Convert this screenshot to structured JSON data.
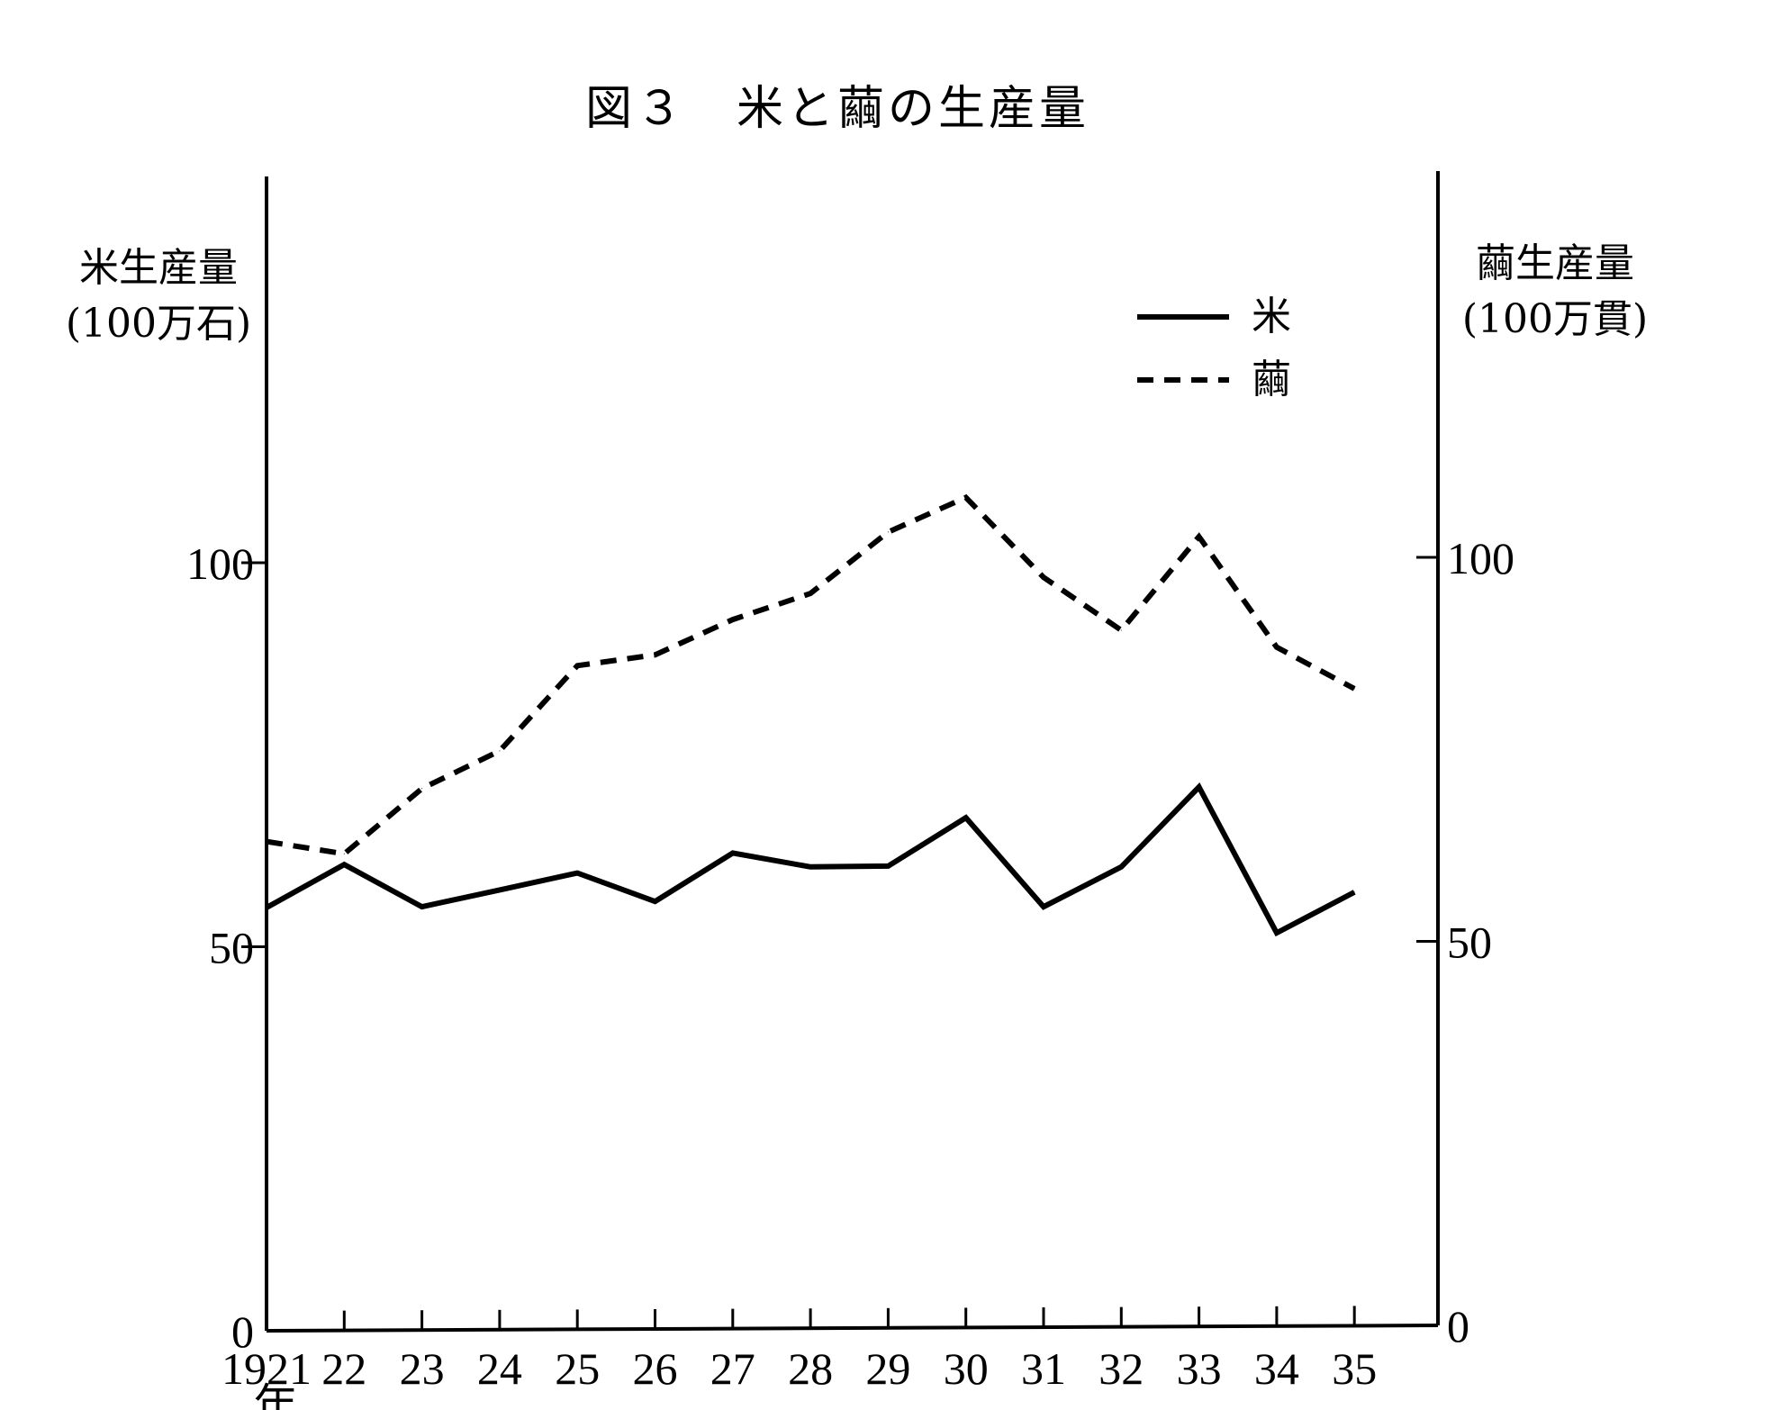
{
  "chart_data": {
    "type": "line",
    "title": "図３　米と繭の生産量",
    "x": [
      "1921",
      "22",
      "23",
      "24",
      "25",
      "26",
      "27",
      "28",
      "29",
      "30",
      "31",
      "32",
      "33",
      "34",
      "35"
    ],
    "xlabel_extra": "年",
    "left_axis": {
      "label_line1": "米生産量",
      "label_line2": "(100万石)",
      "ticks": [
        "0",
        "50",
        "100"
      ],
      "ylim": [
        0,
        140
      ]
    },
    "right_axis": {
      "label_line1": "繭生産量",
      "label_line2": "(100万貫)",
      "ticks": [
        "0",
        "50",
        "100"
      ],
      "ylim": [
        0,
        140
      ]
    },
    "series": [
      {
        "name": "米",
        "style": "solid",
        "axis": "left",
        "values": [
          55.1,
          60.7,
          55.2,
          57.4,
          59.6,
          55.9,
          62.2,
          60.4,
          60.5,
          66.8,
          55.2,
          60.4,
          70.8,
          51.8,
          57.1
        ]
      },
      {
        "name": "繭",
        "style": "dashed",
        "axis": "right",
        "values": [
          63.0,
          61.4,
          69.9,
          74.8,
          85.9,
          87.3,
          91.9,
          95.3,
          103.3,
          107.8,
          97.4,
          90.5,
          102.7,
          88.3,
          82.9
        ]
      }
    ],
    "legend_position": "top-right",
    "grid": false,
    "colors": {
      "line": "#000000",
      "background": "#ffffff"
    }
  }
}
